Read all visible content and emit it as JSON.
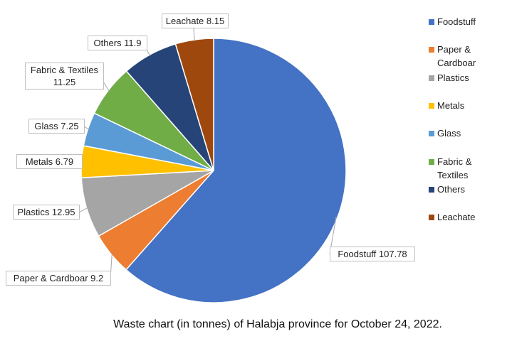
{
  "chart_data": {
    "type": "pie",
    "title": "Waste chart (in tonnes) of Halabja province for October 24, 2022.",
    "categories": [
      "Foodstuff",
      "Paper & Cardboar",
      "Plastics",
      "Metals",
      "Glass",
      "Fabric & Textiles",
      "Others",
      "Leachate"
    ],
    "values": [
      107.78,
      9.2,
      12.95,
      6.79,
      7.25,
      11.25,
      11.9,
      8.15
    ],
    "value_labels": [
      "Foodstuff 107.78",
      "Paper & Cardboar 9.2",
      "Plastics 12.95",
      "Metals 6.79",
      "Glass 7.25",
      "Fabric & Textiles 11.25",
      "Others 11.9",
      "Leachate 8.15"
    ],
    "colors": [
      "#4472c4",
      "#ed7d31",
      "#a5a5a5",
      "#ffc000",
      "#5b9bd5",
      "#70ad47",
      "#264478",
      "#9e480e"
    ],
    "legend": "right"
  }
}
